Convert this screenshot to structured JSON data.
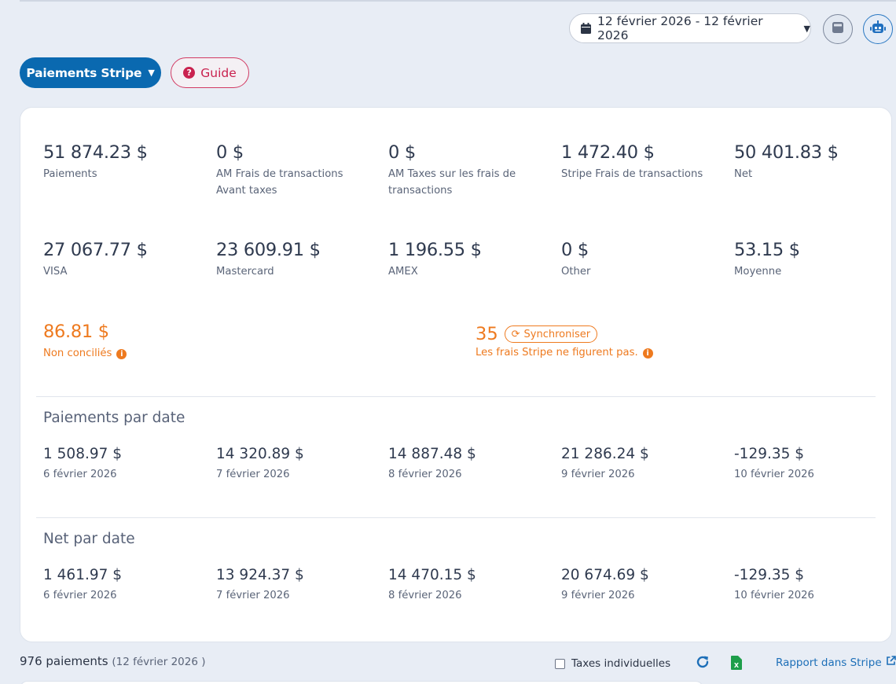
{
  "header": {
    "date_range": "12 février 2026 - 12 février 2026",
    "calculator_icon": "calculator-icon",
    "robot_icon": "robot-icon"
  },
  "toolbar": {
    "stripe_payments_label": "Paiements Stripe",
    "guide_label": "Guide"
  },
  "summary": {
    "row1": [
      {
        "value": "51 874.23 $",
        "label": "Paiements"
      },
      {
        "value": "0 $",
        "label": "AM Frais de transactions Avant taxes"
      },
      {
        "value": "0 $",
        "label": "AM Taxes sur les frais de transactions"
      },
      {
        "value": "1 472.40 $",
        "label": "Stripe Frais de transactions"
      },
      {
        "value": "50 401.83 $",
        "label": "Net"
      }
    ],
    "row2": [
      {
        "value": "27 067.77 $",
        "label": "VISA"
      },
      {
        "value": "23 609.91 $",
        "label": "Mastercard"
      },
      {
        "value": "1 196.55 $",
        "label": "AMEX"
      },
      {
        "value": "0 $",
        "label": "Other"
      },
      {
        "value": "53.15 $",
        "label": "Moyenne"
      }
    ],
    "unreconciled": {
      "value": "86.81 $",
      "label": "Non conciliés"
    },
    "sync": {
      "count": "35",
      "button_label": "Synchroniser",
      "note": "Les frais Stripe ne figurent pas."
    }
  },
  "payments_by_date": {
    "title": "Paiements par date",
    "items": [
      {
        "value": "1 508.97 $",
        "date": "6 février 2026"
      },
      {
        "value": "14 320.89 $",
        "date": "7 février 2026"
      },
      {
        "value": "14 887.48 $",
        "date": "8 février 2026"
      },
      {
        "value": "21 286.24 $",
        "date": "9 février 2026"
      },
      {
        "value": "-129.35 $",
        "date": "10 février 2026"
      }
    ]
  },
  "net_by_date": {
    "title": "Net par date",
    "items": [
      {
        "value": "1 461.97 $",
        "date": "6 février 2026"
      },
      {
        "value": "13 924.37 $",
        "date": "7 février 2026"
      },
      {
        "value": "14 470.15 $",
        "date": "8 février 2026"
      },
      {
        "value": "20 674.69 $",
        "date": "9 février 2026"
      },
      {
        "value": "-129.35 $",
        "date": "10 février 2026"
      }
    ]
  },
  "footer": {
    "count": "976 paiements",
    "count_date": "(12 février 2026 )",
    "tax_checkbox_label": "Taxes individuelles",
    "tax_checkbox_checked": false,
    "stripe_report_link": "Rapport dans Stripe"
  },
  "colors": {
    "primary": "#0a69b0",
    "guide": "#c9224f",
    "warning": "#ee7a1f",
    "excel": "#1e9e4a"
  }
}
